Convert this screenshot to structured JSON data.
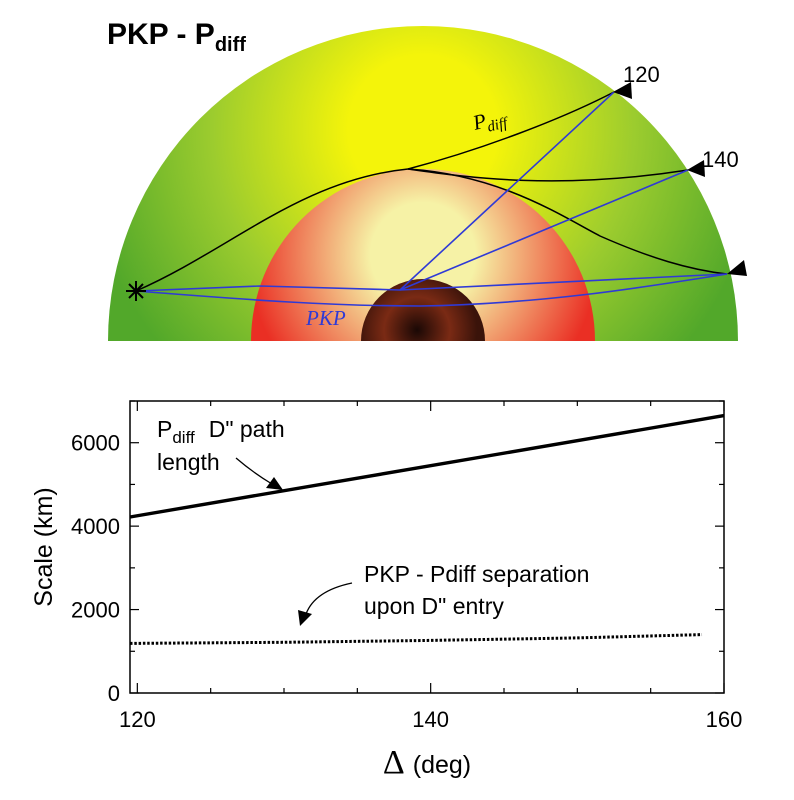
{
  "figure": {
    "title_main": "PKP - P",
    "title_sub": "diff",
    "phase_pdiff_main": "P",
    "phase_pdiff_sub": "diff",
    "phase_pkp": "PKP",
    "stations": [
      "120",
      "140",
      ""
    ],
    "colors": {
      "mantle_outer": "#52a82a",
      "mantle_inner": "#f4f40a",
      "outer_core_outer": "#ea2f24",
      "outer_core_inner": "#f6f2a6",
      "inner_core": "#7a2a14",
      "pkp_ray": "#2f3ad6",
      "pdiff_ray": "#000000"
    }
  },
  "chart_data": {
    "type": "line",
    "title": "",
    "xlabel": "Δ (deg)",
    "xlabel_symbol": "Δ",
    "xlabel_unit": "(deg)",
    "ylabel": "Scale (km)",
    "xlim": [
      119.5,
      160
    ],
    "ylim": [
      0,
      7000
    ],
    "xticks": [
      120,
      140,
      160
    ],
    "yticks": [
      0,
      2000,
      4000,
      6000
    ],
    "grid": false,
    "series": [
      {
        "name": "Pdiff D\" path length",
        "style": "solid",
        "x": [
          119.5,
          160
        ],
        "y": [
          4220,
          6650
        ]
      },
      {
        "name": "PKP - Pdiff separation upon D\" entry",
        "style": "dotted",
        "x": [
          119.5,
          130,
          140,
          150,
          158.5
        ],
        "y": [
          1190,
          1215,
          1260,
          1320,
          1400
        ]
      }
    ],
    "annotations": {
      "pdiff_line1_main": "P",
      "pdiff_line1_sub": "diff",
      "pdiff_line1_rest": "D\" path",
      "pdiff_line2": "length",
      "sep_line1": "PKP - Pdiff separation",
      "sep_line2": "upon D\" entry"
    }
  }
}
